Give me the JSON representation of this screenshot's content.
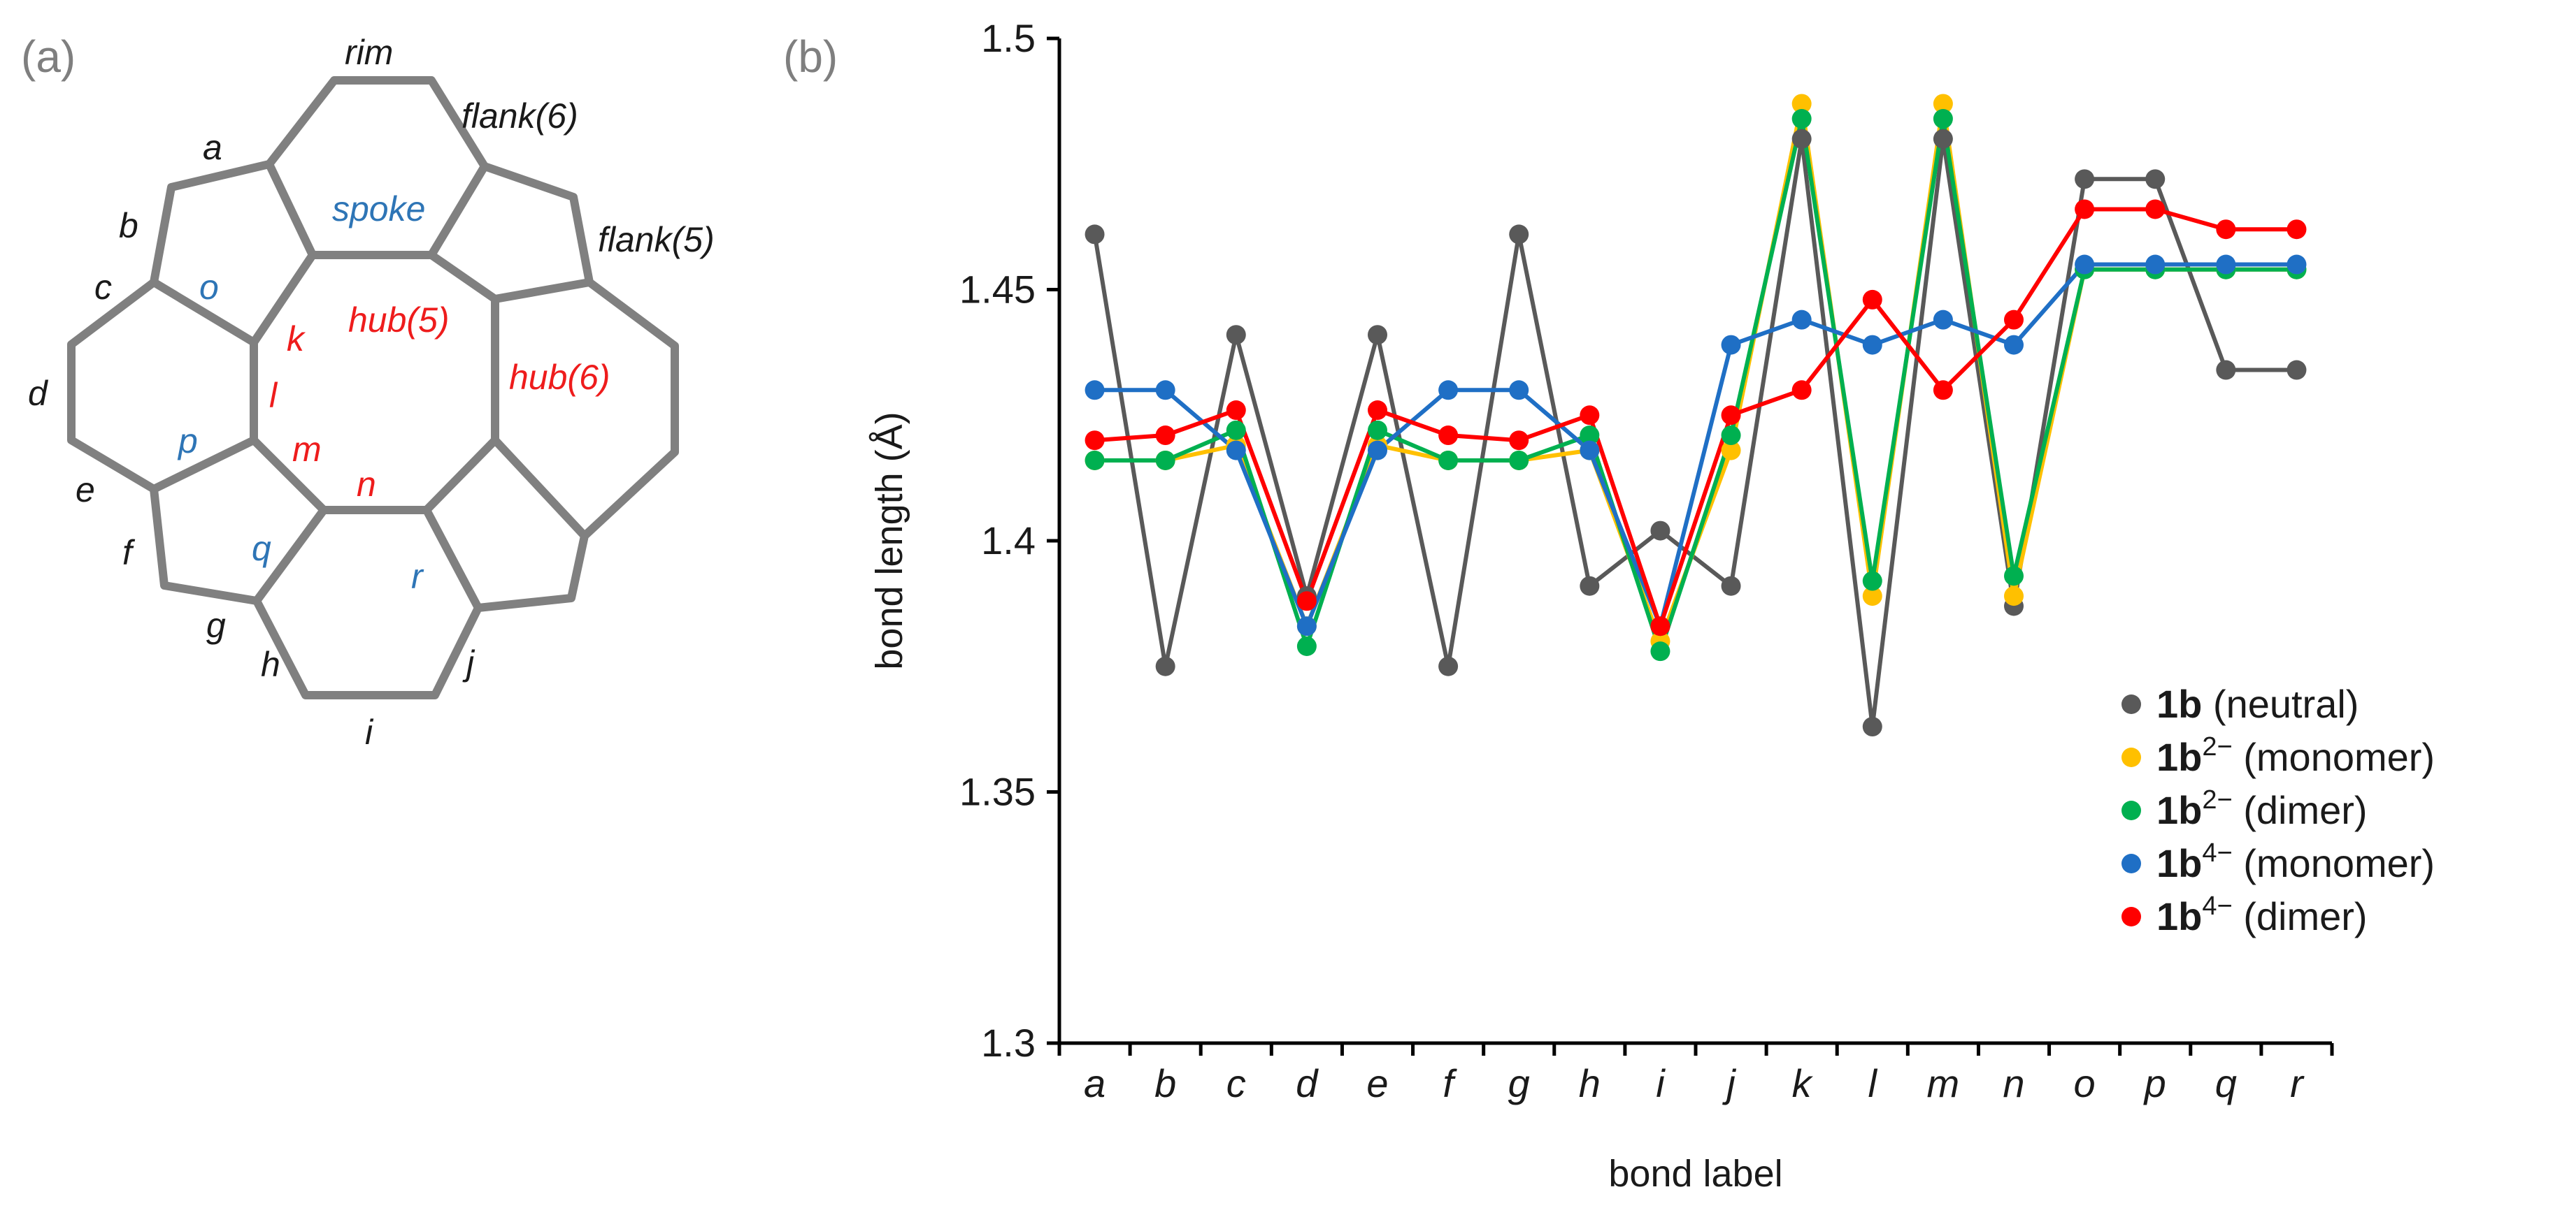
{
  "panel_a": {
    "label": "(a)",
    "outer_labels": {
      "rim": "rim",
      "flank6": "flank(6)",
      "flank5": "flank(5)",
      "a": "a",
      "b": "b",
      "c": "c",
      "d": "d",
      "e": "e",
      "f": "f",
      "g": "g",
      "h": "h",
      "i": "i",
      "j": "j"
    },
    "blue_labels": {
      "spoke": "spoke",
      "o": "o",
      "p": "p",
      "q": "q",
      "r": "r"
    },
    "red_labels": {
      "hub5": "hub(5)",
      "hub6": "hub(6)",
      "k": "k",
      "l": "l",
      "m": "m",
      "n": "n"
    },
    "colors": {
      "ring": "#808080",
      "black": "#1a1a1a",
      "blue": "#2e75b6",
      "red": "#ee1c1c"
    }
  },
  "panel_b": {
    "label": "(b)"
  },
  "chart_data": {
    "type": "line",
    "title": "",
    "xlabel": "bond label",
    "ylabel": "bond length (Å)",
    "ylim": [
      1.3,
      1.5
    ],
    "yticks": [
      1.3,
      1.35,
      1.4,
      1.45,
      1.5
    ],
    "ytick_labels": [
      "1.3",
      "1.35",
      "1.4",
      "1.45",
      "1.5"
    ],
    "categories": [
      "a",
      "b",
      "c",
      "d",
      "e",
      "f",
      "g",
      "h",
      "i",
      "j",
      "k",
      "l",
      "m",
      "n",
      "o",
      "p",
      "q",
      "r"
    ],
    "legend_position": "bottom-right",
    "series": [
      {
        "name": "1b (neutral)",
        "bold": "1b",
        "sup": "",
        "rest": " (neutral)",
        "color": "#595959",
        "values": [
          1.461,
          1.375,
          1.441,
          1.389,
          1.441,
          1.375,
          1.461,
          1.391,
          1.402,
          1.391,
          1.48,
          1.363,
          1.48,
          1.387,
          1.472,
          1.472,
          1.434,
          1.434
        ]
      },
      {
        "name": "1b2− (monomer)",
        "bold": "1b",
        "sup": "2−",
        "rest": " (monomer)",
        "color": "#ffc000",
        "values": [
          1.416,
          1.416,
          1.419,
          1.383,
          1.419,
          1.416,
          1.416,
          1.418,
          1.38,
          1.418,
          1.487,
          1.389,
          1.487,
          1.389,
          1.454,
          1.454,
          1.454,
          1.454
        ]
      },
      {
        "name": "1b2− (dimer)",
        "bold": "1b",
        "sup": "2−",
        "rest": " (dimer)",
        "color": "#00b050",
        "values": [
          1.416,
          1.416,
          1.422,
          1.379,
          1.422,
          1.416,
          1.416,
          1.421,
          1.378,
          1.421,
          1.484,
          1.392,
          1.484,
          1.393,
          1.454,
          1.454,
          1.454,
          1.454
        ]
      },
      {
        "name": "1b4− (monomer)",
        "bold": "1b",
        "sup": "4−",
        "rest": " (monomer)",
        "color": "#1f6fc5",
        "values": [
          1.43,
          1.43,
          1.418,
          1.383,
          1.418,
          1.43,
          1.43,
          1.418,
          1.383,
          1.439,
          1.444,
          1.439,
          1.444,
          1.439,
          1.455,
          1.455,
          1.455,
          1.455
        ]
      },
      {
        "name": "1b4− (dimer)",
        "bold": "1b",
        "sup": "4−",
        "rest": " (dimer)",
        "color": "#ff0000",
        "values": [
          1.42,
          1.421,
          1.426,
          1.388,
          1.426,
          1.421,
          1.42,
          1.425,
          1.383,
          1.425,
          1.43,
          1.448,
          1.43,
          1.444,
          1.466,
          1.466,
          1.462,
          1.462
        ]
      }
    ]
  }
}
